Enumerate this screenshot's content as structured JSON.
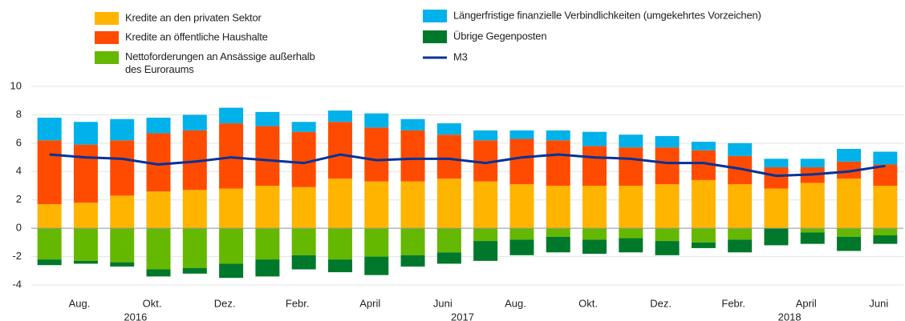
{
  "chart_data": {
    "type": "bar",
    "stacked": true,
    "categories": [
      null,
      "Aug.",
      null,
      "Okt.",
      null,
      "Dez.",
      null,
      "Febr.",
      null,
      "April",
      null,
      "Juni",
      null,
      "Aug.",
      null,
      "Okt.",
      null,
      "Dez.",
      null,
      "Febr.",
      null,
      "April",
      null,
      "Juni"
    ],
    "x_groups": [
      {
        "label": "2016",
        "start": 0,
        "end": 5
      },
      {
        "label": "2017",
        "start": 6,
        "end": 17
      },
      {
        "label": "2018",
        "start": 18,
        "end": 23
      }
    ],
    "ylim": [
      -4,
      10
    ],
    "yticks": [
      -4,
      -2,
      0,
      2,
      4,
      6,
      8,
      10
    ],
    "grid": true,
    "series": [
      {
        "name": "Kredite an den privaten Sektor",
        "color": "#ffb400",
        "type": "bar",
        "values": [
          1.7,
          1.8,
          2.3,
          2.6,
          2.7,
          2.8,
          3.0,
          2.9,
          3.5,
          3.3,
          3.3,
          3.5,
          3.3,
          3.1,
          3.0,
          3.0,
          3.0,
          3.1,
          3.4,
          3.1,
          2.8,
          3.2,
          3.5,
          3.0
        ]
      },
      {
        "name": "Kredite an öffentliche Haushalte",
        "color": "#ff4b00",
        "type": "bar",
        "values": [
          4.5,
          4.1,
          3.9,
          4.1,
          4.2,
          4.6,
          4.2,
          3.9,
          4.0,
          3.8,
          3.6,
          3.1,
          2.9,
          3.2,
          3.2,
          2.8,
          2.7,
          2.6,
          2.1,
          2.0,
          1.5,
          1.1,
          1.2,
          1.5
        ]
      },
      {
        "name": "Nettoforderungen an Ansässige außerhalb des Euroraums",
        "color": "#65b800",
        "type": "bar",
        "values": [
          -2.2,
          -2.3,
          -2.4,
          -2.9,
          -2.8,
          -2.5,
          -2.2,
          -1.9,
          -2.2,
          -2.0,
          -1.9,
          -1.7,
          -0.9,
          -0.8,
          -0.6,
          -0.8,
          -0.7,
          -0.9,
          -1.0,
          -0.8,
          0,
          -0.3,
          -0.6,
          -0.5
        ]
      },
      {
        "name": "Längerfristige finanzielle Verbindlichkeiten (umgekehrtes Vorzeichen)",
        "color": "#00b1ea",
        "type": "bar",
        "values": [
          1.6,
          1.6,
          1.5,
          1.1,
          1.1,
          1.1,
          1.0,
          0.7,
          0.8,
          1.0,
          0.8,
          0.8,
          0.7,
          0.6,
          0.7,
          1.0,
          0.9,
          0.8,
          0.6,
          0.9,
          0.6,
          0.6,
          0.9,
          0.9
        ]
      },
      {
        "name": "Übrige Gegenposten",
        "color": "#00782b",
        "type": "bar",
        "values": [
          -0.4,
          -0.2,
          -0.3,
          -0.5,
          -0.4,
          -1.0,
          -1.2,
          -1.0,
          -0.9,
          -1.3,
          -0.8,
          -0.8,
          -1.4,
          -1.1,
          -1.1,
          -1.0,
          -1.0,
          -1.0,
          -0.4,
          -0.9,
          -1.2,
          -0.8,
          -1.0,
          -0.6
        ]
      },
      {
        "name": "M3",
        "color": "#003299",
        "type": "line",
        "values": [
          5.2,
          5.0,
          4.9,
          4.5,
          4.7,
          5.0,
          4.8,
          4.6,
          5.2,
          4.8,
          4.9,
          4.9,
          4.6,
          5.0,
          5.2,
          5.0,
          4.9,
          4.6,
          4.6,
          4.2,
          3.7,
          3.8,
          4.0,
          4.4
        ]
      }
    ]
  }
}
